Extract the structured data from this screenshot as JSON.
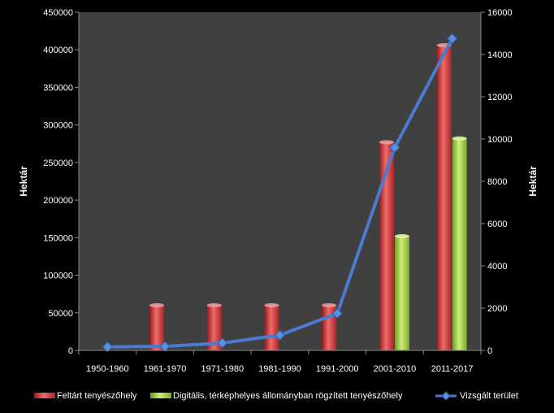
{
  "chart_data": {
    "type": "bar",
    "categories": [
      "1950-1960",
      "1961-1970",
      "1971-1980",
      "1981-1990",
      "1991-2000",
      "2001-2010",
      "2011-2017"
    ],
    "series": [
      {
        "name": "Feltárt tenyészőhely",
        "type": "bar",
        "axis": "left",
        "color": "#d63a3a",
        "values": [
          0,
          60000,
          60000,
          60000,
          60000,
          277000,
          406000
        ]
      },
      {
        "name": "Digitális, térképhelyes állományban rögzített tenyészőhely",
        "type": "bar",
        "axis": "left",
        "color": "#9fd34a",
        "values": [
          0,
          0,
          0,
          0,
          0,
          152000,
          282000
        ]
      },
      {
        "name": "Vizsgált terület",
        "type": "line",
        "axis": "right",
        "color": "#4a7bd0",
        "values": [
          170,
          190,
          350,
          720,
          1750,
          9600,
          14750
        ]
      }
    ],
    "ylabel": "Hektár",
    "y2label": "Hektár",
    "ylim": [
      0,
      450000
    ],
    "y2lim": [
      0,
      16000
    ],
    "yticks": [
      0,
      50000,
      100000,
      150000,
      200000,
      250000,
      300000,
      350000,
      400000,
      450000
    ],
    "y2ticks": [
      0,
      2000,
      4000,
      6000,
      8000,
      10000,
      12000,
      14000,
      16000
    ],
    "grid": false,
    "legend_position": "bottom",
    "plot_background": "#404040"
  }
}
